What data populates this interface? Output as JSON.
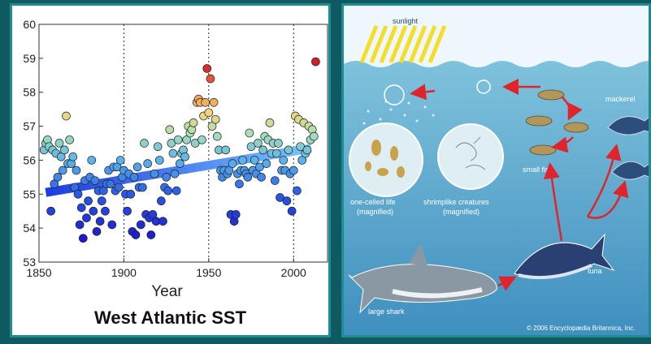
{
  "chart_data": {
    "type": "scatter",
    "title": "West Atlantic SST",
    "xlabel": "Year",
    "ylabel": "",
    "xlim": [
      1850,
      2020
    ],
    "ylim": [
      53,
      60
    ],
    "x_ticks": [
      "1850",
      "1900",
      "1950",
      "2000"
    ],
    "y_ticks": [
      "53",
      "54",
      "55",
      "56",
      "57",
      "58",
      "59",
      "60"
    ],
    "grid": "vertical-dotted at 1900, 1950, 2000",
    "colormap": "value-colored (blue low → red high)",
    "trend_line": {
      "x": [
        1854,
        2010
      ],
      "y": [
        55.05,
        56.35
      ],
      "color_start": "#1e3fe0",
      "color_end": "#7cc6ff"
    },
    "points": [
      [
        1853,
        56.3
      ],
      [
        1854,
        56.5
      ],
      [
        1855,
        56.6
      ],
      [
        1856,
        56.4
      ],
      [
        1857,
        54.5
      ],
      [
        1858,
        56.3
      ],
      [
        1859,
        55.3
      ],
      [
        1860,
        56.2
      ],
      [
        1861,
        55.5
      ],
      [
        1862,
        56.5
      ],
      [
        1863,
        56.1
      ],
      [
        1864,
        55.7
      ],
      [
        1865,
        56.3
      ],
      [
        1866,
        57.3
      ],
      [
        1867,
        55.9
      ],
      [
        1868,
        56.6
      ],
      [
        1869,
        55.9
      ],
      [
        1870,
        56.1
      ],
      [
        1871,
        55.2
      ],
      [
        1872,
        55.7
      ],
      [
        1873,
        55.0
      ],
      [
        1874,
        54.1
      ],
      [
        1875,
        54.6
      ],
      [
        1876,
        53.7
      ],
      [
        1877,
        55.4
      ],
      [
        1878,
        54.3
      ],
      [
        1879,
        54.8
      ],
      [
        1880,
        55.5
      ],
      [
        1881,
        56.0
      ],
      [
        1882,
        54.5
      ],
      [
        1883,
        55.4
      ],
      [
        1884,
        53.9
      ],
      [
        1885,
        55.1
      ],
      [
        1886,
        54.2
      ],
      [
        1887,
        54.8
      ],
      [
        1888,
        55.1
      ],
      [
        1889,
        54.5
      ],
      [
        1890,
        55.3
      ],
      [
        1891,
        55.7
      ],
      [
        1892,
        55.3
      ],
      [
        1893,
        54.1
      ],
      [
        1894,
        55.8
      ],
      [
        1895,
        55.1
      ],
      [
        1896,
        55.8
      ],
      [
        1897,
        55.2
      ],
      [
        1898,
        56.0
      ],
      [
        1899,
        55.5
      ],
      [
        1900,
        55.7
      ],
      [
        1901,
        55.0
      ],
      [
        1902,
        54.5
      ],
      [
        1903,
        55.6
      ],
      [
        1904,
        55.0
      ],
      [
        1905,
        53.9
      ],
      [
        1906,
        55.5
      ],
      [
        1907,
        53.8
      ],
      [
        1908,
        55.8
      ],
      [
        1909,
        55.2
      ],
      [
        1910,
        54.1
      ],
      [
        1911,
        55.2
      ],
      [
        1912,
        56.5
      ],
      [
        1913,
        54.4
      ],
      [
        1914,
        55.9
      ],
      [
        1915,
        54.3
      ],
      [
        1916,
        53.8
      ],
      [
        1917,
        54.4
      ],
      [
        1918,
        55.6
      ],
      [
        1919,
        54.2
      ],
      [
        1920,
        56.4
      ],
      [
        1921,
        56.0
      ],
      [
        1922,
        54.8
      ],
      [
        1923,
        54.2
      ],
      [
        1924,
        55.2
      ],
      [
        1925,
        55.5
      ],
      [
        1926,
        55.1
      ],
      [
        1927,
        56.9
      ],
      [
        1928,
        56.5
      ],
      [
        1929,
        56.2
      ],
      [
        1930,
        55.6
      ],
      [
        1931,
        55.1
      ],
      [
        1932,
        56.6
      ],
      [
        1933,
        55.9
      ],
      [
        1934,
        56.2
      ],
      [
        1935,
        56.3
      ],
      [
        1936,
        56.1
      ],
      [
        1937,
        56.6
      ],
      [
        1938,
        57.0
      ],
      [
        1939,
        56.8
      ],
      [
        1940,
        56.9
      ],
      [
        1941,
        57.1
      ],
      [
        1942,
        56.5
      ],
      [
        1943,
        57.7
      ],
      [
        1944,
        57.8
      ],
      [
        1945,
        57.7
      ],
      [
        1946,
        56.6
      ],
      [
        1947,
        57.3
      ],
      [
        1948,
        57.7
      ],
      [
        1949,
        58.7
      ],
      [
        1950,
        57.4
      ],
      [
        1951,
        58.4
      ],
      [
        1952,
        57.0
      ],
      [
        1953,
        57.7
      ],
      [
        1954,
        57.2
      ],
      [
        1955,
        56.7
      ],
      [
        1956,
        56.3
      ],
      [
        1957,
        55.7
      ],
      [
        1958,
        55.5
      ],
      [
        1959,
        55.7
      ],
      [
        1960,
        56.3
      ],
      [
        1961,
        55.6
      ],
      [
        1962,
        55.7
      ],
      [
        1963,
        54.4
      ],
      [
        1964,
        55.9
      ],
      [
        1965,
        54.2
      ],
      [
        1966,
        54.4
      ],
      [
        1967,
        55.6
      ],
      [
        1968,
        55.3
      ],
      [
        1969,
        55.7
      ],
      [
        1970,
        56.0
      ],
      [
        1971,
        55.7
      ],
      [
        1972,
        55.6
      ],
      [
        1973,
        55.5
      ],
      [
        1974,
        56.8
      ],
      [
        1975,
        56.4
      ],
      [
        1976,
        55.7
      ],
      [
        1977,
        56.0
      ],
      [
        1978,
        55.6
      ],
      [
        1979,
        56.5
      ],
      [
        1980,
        55.8
      ],
      [
        1981,
        55.5
      ],
      [
        1982,
        56.3
      ],
      [
        1983,
        56.7
      ],
      [
        1984,
        55.9
      ],
      [
        1985,
        56.6
      ],
      [
        1986,
        57.1
      ],
      [
        1987,
        56.2
      ],
      [
        1988,
        56.5
      ],
      [
        1989,
        55.4
      ],
      [
        1990,
        56.2
      ],
      [
        1991,
        56.5
      ],
      [
        1992,
        54.9
      ],
      [
        1993,
        55.7
      ],
      [
        1994,
        56.0
      ],
      [
        1995,
        55.7
      ],
      [
        1996,
        54.8
      ],
      [
        1997,
        56.3
      ],
      [
        1998,
        55.6
      ],
      [
        1999,
        54.5
      ],
      [
        2000,
        55.7
      ],
      [
        2001,
        57.3
      ],
      [
        2002,
        55.1
      ],
      [
        2003,
        57.2
      ],
      [
        2004,
        56.4
      ],
      [
        2005,
        56.0
      ],
      [
        2006,
        57.1
      ],
      [
        2007,
        56.2
      ],
      [
        2008,
        56.3
      ],
      [
        2009,
        57.0
      ],
      [
        2010,
        56.6
      ],
      [
        2011,
        56.9
      ],
      [
        2012,
        56.7
      ],
      [
        2013,
        58.9
      ]
    ]
  },
  "food_chain": {
    "labels": {
      "sunlight": "sunlight",
      "one_celled": "one-celled life",
      "one_celled_sub": "(magnified)",
      "shrimplike": "shrimplike creatures",
      "shrimplike_sub": "(magnified)",
      "small_fish": "small fish",
      "mackerel": "mackerel",
      "tuna": "tuna",
      "large_shark": "large shark",
      "credit": "© 2006 Encyclopædia Britannica, Inc."
    }
  }
}
